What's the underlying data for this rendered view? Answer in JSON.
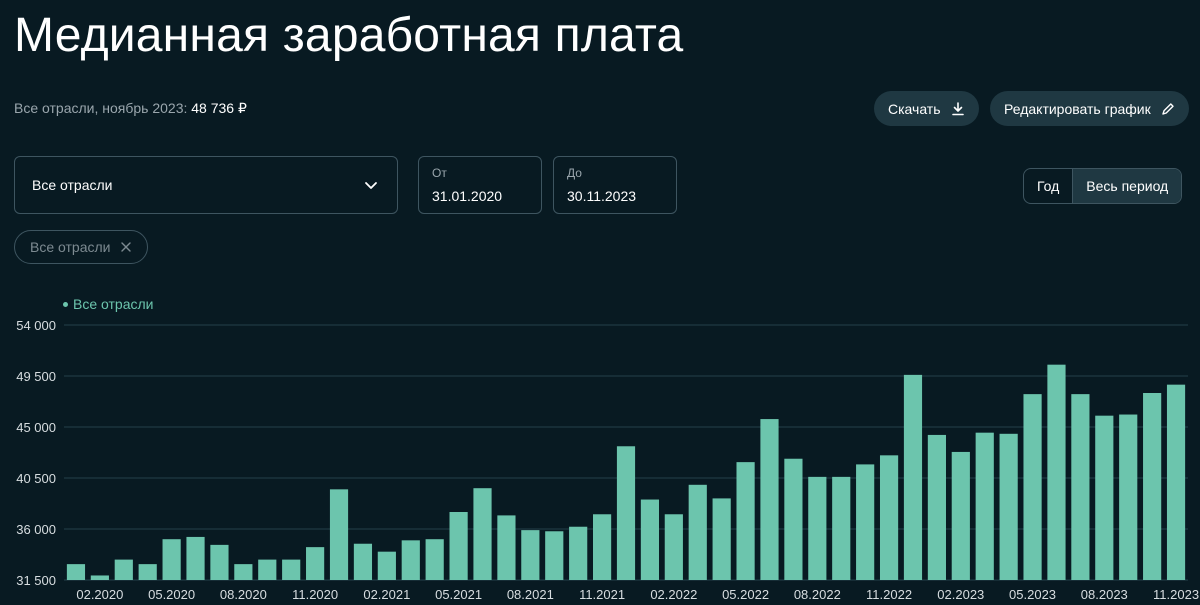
{
  "header": {
    "title": "Медианная заработная плата",
    "subtitle_prefix": "Все отрасли, ноябрь 2023:",
    "subtitle_value": "48 736 ₽"
  },
  "toolbar": {
    "download_label": "Скачать",
    "edit_label": "Редактировать график"
  },
  "filters": {
    "industry_select": "Все отрасли",
    "from_label": "От",
    "from_value": "31.01.2020",
    "to_label": "До",
    "to_value": "30.11.2023",
    "period_options": [
      "Год",
      "Весь период"
    ],
    "period_selected": "Весь период",
    "chip_label": "Все отрасли"
  },
  "colors": {
    "background": "#081a22",
    "bar": "#6cc5ad",
    "grid": "#24404a",
    "button": "#1f3842"
  },
  "chart_data": {
    "type": "bar",
    "legend": "Все отрасли",
    "legend_position": "top-left",
    "grid": true,
    "ylim": [
      31500,
      54000
    ],
    "y_ticks": [
      31500,
      36000,
      40500,
      45000,
      49500,
      54000
    ],
    "y_tick_labels": [
      "31 500",
      "36 000",
      "40 500",
      "45 000",
      "49 500",
      "54 000"
    ],
    "x_tick_labels": [
      "02.2020",
      "05.2020",
      "08.2020",
      "11.2020",
      "02.2021",
      "05.2021",
      "08.2021",
      "11.2021",
      "02.2022",
      "05.2022",
      "08.2022",
      "11.2022",
      "02.2023",
      "05.2023",
      "08.2023",
      "11.2023"
    ],
    "categories": [
      "01.2020",
      "02.2020",
      "03.2020",
      "04.2020",
      "05.2020",
      "06.2020",
      "07.2020",
      "08.2020",
      "09.2020",
      "10.2020",
      "11.2020",
      "12.2020",
      "01.2021",
      "02.2021",
      "03.2021",
      "04.2021",
      "05.2021",
      "06.2021",
      "07.2021",
      "08.2021",
      "09.2021",
      "10.2021",
      "11.2021",
      "12.2021",
      "01.2022",
      "02.2022",
      "03.2022",
      "04.2022",
      "05.2022",
      "06.2022",
      "07.2022",
      "08.2022",
      "09.2022",
      "10.2022",
      "11.2022",
      "12.2022",
      "01.2023",
      "02.2023",
      "03.2023",
      "04.2023",
      "05.2023",
      "06.2023",
      "07.2023",
      "08.2023",
      "09.2023",
      "10.2023",
      "11.2023"
    ],
    "series": [
      {
        "name": "Все отрасли",
        "values": [
          32900,
          31900,
          33300,
          32900,
          35100,
          35300,
          34600,
          32900,
          33300,
          33300,
          34400,
          39500,
          34700,
          34000,
          35000,
          35100,
          37500,
          39600,
          37200,
          35900,
          35800,
          36200,
          37300,
          43300,
          38600,
          37300,
          39900,
          38700,
          41900,
          45700,
          42200,
          40600,
          40600,
          41700,
          42500,
          49600,
          44300,
          42800,
          44500,
          44400,
          47900,
          50500,
          47900,
          46000,
          46100,
          48000,
          48736
        ]
      }
    ]
  }
}
